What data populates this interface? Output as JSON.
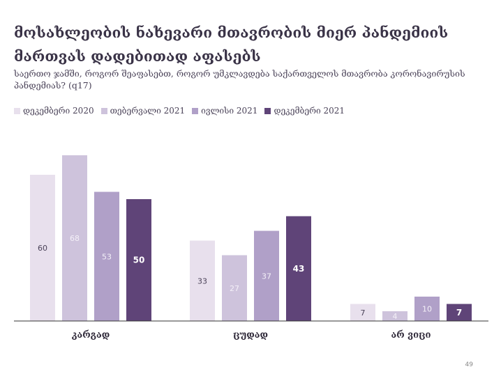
{
  "title": "მოსახლეობის ნახევარი მთავრობის მიერ პანდემიის მართვას დადებითად აფასებს",
  "subtitle": "საერთო ჯამში, როგორ შეაფასებთ, როგორ უმკლავდება საქართველოს მთავრობა კორონავირუსის პანდემიას? (q17)",
  "page_number": "49",
  "colors": [
    "#e8e0ed",
    "#cec3dc",
    "#b0a0c8",
    "#5f4478"
  ],
  "chart_data": {
    "type": "bar",
    "categories": [
      "კარგად",
      "ცუდად",
      "არ ვიცი"
    ],
    "series": [
      {
        "name": "დეკემბერი 2020",
        "values": [
          60,
          33,
          7
        ]
      },
      {
        "name": "თებერვალი 2021",
        "values": [
          68,
          27,
          4
        ]
      },
      {
        "name": "ივლისი 2021",
        "values": [
          53,
          37,
          10
        ]
      },
      {
        "name": "დეკემბერი 2021",
        "values": [
          50,
          43,
          7
        ]
      }
    ],
    "ylim": [
      0,
      70
    ],
    "legend": "top-left",
    "grid": false
  }
}
